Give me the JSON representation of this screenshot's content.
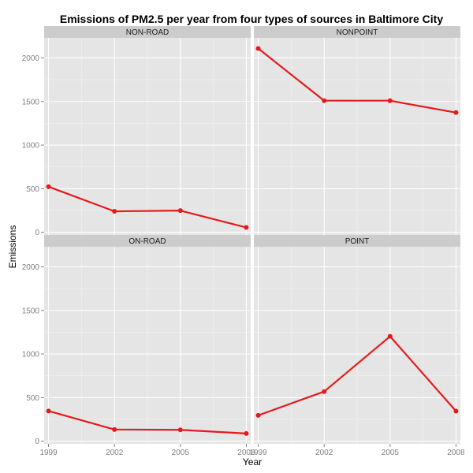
{
  "chart_data": {
    "type": "line",
    "title": "Emissions of PM2.5 per year from four types of sources in Baltimore City",
    "xlabel": "Year",
    "ylabel": "Emissions",
    "x": [
      1999,
      2002,
      2005,
      2008
    ],
    "x_ticks": [
      "1999",
      "2002",
      "2005",
      "2008"
    ],
    "y_ticks": [
      0,
      500,
      1000,
      1500,
      2000
    ],
    "ylim": [
      -30,
      2230
    ],
    "xlim": [
      1998.8,
      2008.2
    ],
    "grid": true,
    "line_color": "#e41a1c",
    "panel_background": "#e5e5e5",
    "strip_background": "#cccccc",
    "facets": [
      {
        "name": "NON-ROAD",
        "values": [
          522.9,
          240.8,
          248.9,
          55.8
        ]
      },
      {
        "name": "NONPOINT",
        "values": [
          2107.6,
          1509.5,
          1509.5,
          1373.2
        ]
      },
      {
        "name": "ON-ROAD",
        "values": [
          346.8,
          134.3,
          130.4,
          88.3
        ]
      },
      {
        "name": "POINT",
        "values": [
          296.8,
          569.3,
          1202.5,
          344.98
        ]
      }
    ]
  }
}
